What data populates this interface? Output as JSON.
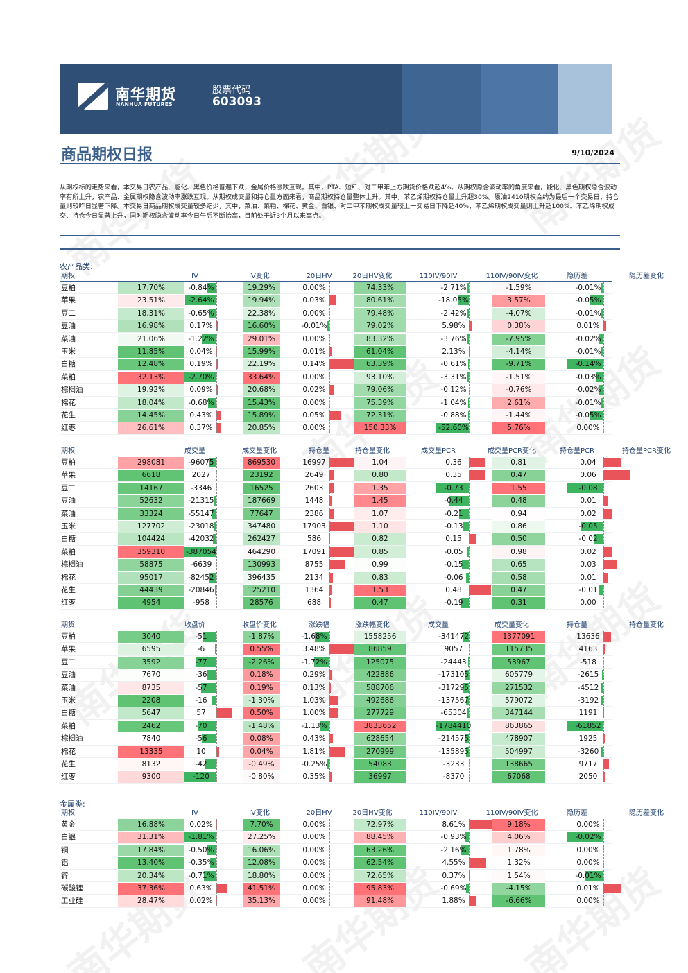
{
  "header": {
    "logo_cn": "南华期货",
    "logo_en": "NANHUA FUTURES",
    "stock_label": "股票代码",
    "stock_code": "603093",
    "title": "商品期权日报",
    "date": "9/10/2024"
  },
  "summary": "从期权标的走势来看，本交易日农产品、能化、黑色价格普遍下跌，金属价格涨跌互现。其中，PTA、短纤、对二甲苯上方期货价格跌超4%。从期权隐含波动率的角度来看，能化、黑色期权隐含波动率有所上升，农产品、金属期权隐含波动率涨跌互现。从期权成交量和持仓量方面来看，商品期权持仓量整体上升。其中，苯乙烯期权持仓量上升超30%。原油2410期权合约为最后一个交易日，持仓量则较昨日显著下降。本交易日商品期权成交量较多缩少，其中，菜油、菜粕、棉花、黄金、白银、对二甲苯期权成交量较上一交易日下降超40%，苯乙烯期权成交量则上升超100%。苯乙烯期权成交、持仓今日显著上升，同时期权隐含波动率今日午后不断抬高，目前处于近3个月以来高点。",
  "watermark": "南华期货",
  "sections": {
    "agri": "农产品类:",
    "metal": "金属类:"
  },
  "colors": {
    "green": "#3cb460",
    "red": "#e8545a",
    "green_bg_strong": "#6bbf7c",
    "red_bg_strong": "#ea6b70",
    "navy": "#2f4f76"
  },
  "tables": [
    {
      "id": "agri-iv",
      "headers": [
        "期权",
        "IV",
        "IV变化",
        "20日HV",
        "20日HV变化",
        "110IV/90IV",
        "110IV/90IV变化",
        "隐历差",
        "隐历差变化"
      ],
      "rows": [
        {
          "name": "豆粕",
          "v": [
            "17.70%",
            "-0.84%",
            "19.29%",
            "0.00%",
            "74.33%",
            "-2.71%",
            "-1.59%",
            "-0.01%"
          ]
        },
        {
          "name": "苹果",
          "v": [
            "23.51%",
            "-2.64%",
            "19.94%",
            "0.03%",
            "80.61%",
            "-18.05%",
            "3.57%",
            "-0.05%"
          ]
        },
        {
          "name": "豆二",
          "v": [
            "18.31%",
            "-0.65%",
            "22.38%",
            "0.00%",
            "79.48%",
            "-2.42%",
            "-4.07%",
            "-0.01%"
          ]
        },
        {
          "name": "豆油",
          "v": [
            "16.98%",
            "0.17%",
            "16.60%",
            "-0.01%",
            "79.02%",
            "5.98%",
            "0.38%",
            "0.01%"
          ]
        },
        {
          "name": "菜油",
          "v": [
            "21.06%",
            "-1.22%",
            "29.01%",
            "0.00%",
            "83.32%",
            "-3.76%",
            "-7.95%",
            "-0.02%"
          ]
        },
        {
          "name": "玉米",
          "v": [
            "11.85%",
            "0.04%",
            "15.99%",
            "0.01%",
            "61.04%",
            "2.13%",
            "-4.14%",
            "-0.01%"
          ]
        },
        {
          "name": "白糖",
          "v": [
            "12.48%",
            "0.19%",
            "22.19%",
            "0.14%",
            "63.39%",
            "-0.61%",
            "-9.71%",
            "-0.14%"
          ]
        },
        {
          "name": "菜粕",
          "v": [
            "32.13%",
            "-2.70%",
            "33.64%",
            "0.00%",
            "93.10%",
            "-3.31%",
            "-1.51%",
            "-0.03%"
          ]
        },
        {
          "name": "棕榈油",
          "v": [
            "19.92%",
            "0.09%",
            "20.68%",
            "0.02%",
            "79.06%",
            "-0.12%",
            "-0.76%",
            "-0.02%"
          ]
        },
        {
          "name": "棉花",
          "v": [
            "18.04%",
            "-0.68%",
            "15.43%",
            "0.00%",
            "75.39%",
            "-1.04%",
            "2.61%",
            "-0.01%"
          ]
        },
        {
          "name": "花生",
          "v": [
            "14.45%",
            "0.43%",
            "15.89%",
            "0.05%",
            "72.31%",
            "-0.88%",
            "-1.44%",
            "-0.05%"
          ]
        },
        {
          "name": "红枣",
          "v": [
            "26.61%",
            "0.37%",
            "20.85%",
            "0.00%",
            "150.33%",
            "-52.60%",
            "5.76%",
            "0.00%"
          ]
        }
      ]
    },
    {
      "id": "agri-vol",
      "headers": [
        "期权",
        "成交量",
        "成交量变化",
        "持仓量",
        "持仓量变化",
        "成交量PCR",
        "成交量PCR变化",
        "持仓量PCR",
        "持仓量PCR变化"
      ],
      "rows": [
        {
          "name": "豆粕",
          "v": [
            "298081",
            "-96075",
            "869530",
            "16997",
            "1.04",
            "0.36",
            "0.81",
            "0.04"
          ]
        },
        {
          "name": "苹果",
          "v": [
            "6618",
            "2027",
            "23192",
            "2649",
            "0.80",
            "0.35",
            "0.47",
            "0.06"
          ]
        },
        {
          "name": "豆二",
          "v": [
            "14167",
            "-3346",
            "16525",
            "2603",
            "1.35",
            "-0.73",
            "1.55",
            "-0.08"
          ]
        },
        {
          "name": "豆油",
          "v": [
            "52632",
            "-21315",
            "187669",
            "1448",
            "1.45",
            "-0.44",
            "0.48",
            "0.01"
          ]
        },
        {
          "name": "菜油",
          "v": [
            "33324",
            "-55147",
            "77647",
            "2386",
            "1.07",
            "-0.21",
            "0.94",
            "0.02"
          ]
        },
        {
          "name": "玉米",
          "v": [
            "127702",
            "-23018",
            "347480",
            "17903",
            "1.10",
            "-0.13",
            "0.86",
            "-0.05"
          ]
        },
        {
          "name": "白糖",
          "v": [
            "104424",
            "-42032",
            "262427",
            "586",
            "0.82",
            "0.15",
            "0.50",
            "-0.02"
          ]
        },
        {
          "name": "菜粕",
          "v": [
            "359310",
            "-387054",
            "464290",
            "17091",
            "0.85",
            "-0.05",
            "0.98",
            "0.02"
          ]
        },
        {
          "name": "棕榈油",
          "v": [
            "58875",
            "-6639",
            "130993",
            "8755",
            "0.99",
            "-0.15",
            "0.65",
            "0.03"
          ]
        },
        {
          "name": "棉花",
          "v": [
            "95017",
            "-82452",
            "396435",
            "2134",
            "0.83",
            "-0.06",
            "0.58",
            "0.01"
          ]
        },
        {
          "name": "花生",
          "v": [
            "44439",
            "-20846",
            "125210",
            "1364",
            "1.53",
            "0.48",
            "0.47",
            "-0.01"
          ]
        },
        {
          "name": "红枣",
          "v": [
            "4954",
            "-958",
            "28576",
            "688",
            "0.47",
            "-0.19",
            "0.31",
            "0.00"
          ]
        }
      ]
    },
    {
      "id": "agri-fut",
      "headers": [
        "期货",
        "收盘价",
        "收盘价变化",
        "涨跌幅",
        "涨跌幅变化",
        "成交量",
        "成交量变化",
        "持仓量",
        "持仓量变化"
      ],
      "rows": [
        {
          "name": "豆粕",
          "v": [
            "3040",
            "-51",
            "-1.87%",
            "-1.68%",
            "1558256",
            "-341472",
            "1377091",
            "13636"
          ]
        },
        {
          "name": "苹果",
          "v": [
            "6595",
            "-6",
            "0.55%",
            "3.48%",
            "86859",
            "9057",
            "115735",
            "4163"
          ]
        },
        {
          "name": "豆二",
          "v": [
            "3592",
            "-77",
            "-2.26%",
            "-1.72%",
            "125075",
            "-24443",
            "53967",
            "-518"
          ]
        },
        {
          "name": "豆油",
          "v": [
            "7670",
            "-36",
            "0.18%",
            "0.29%",
            "422886",
            "-173105",
            "605779",
            "-2615"
          ]
        },
        {
          "name": "菜油",
          "v": [
            "8735",
            "-57",
            "0.19%",
            "0.13%",
            "588706",
            "-317295",
            "271532",
            "-4512"
          ]
        },
        {
          "name": "玉米",
          "v": [
            "2208",
            "-16",
            "-1.30%",
            "1.03%",
            "492686",
            "-137567",
            "579072",
            "-3192"
          ]
        },
        {
          "name": "白糖",
          "v": [
            "5647",
            "57",
            "0.50%",
            "1.00%",
            "277729",
            "-65304",
            "347144",
            "1191"
          ]
        },
        {
          "name": "菜粕",
          "v": [
            "2462",
            "-70",
            "-1.48%",
            "-1.13%",
            "3833652",
            "-1784410",
            "863865",
            "-61852"
          ]
        },
        {
          "name": "棕榈油",
          "v": [
            "7840",
            "-56",
            "0.08%",
            "0.43%",
            "628654",
            "-214575",
            "478907",
            "1925"
          ]
        },
        {
          "name": "棉花",
          "v": [
            "13335",
            "10",
            "0.04%",
            "1.81%",
            "270999",
            "-135895",
            "504997",
            "-3260"
          ]
        },
        {
          "name": "花生",
          "v": [
            "8132",
            "-42",
            "-0.49%",
            "-0.25%",
            "54083",
            "-3233",
            "138665",
            "9717"
          ]
        },
        {
          "name": "红枣",
          "v": [
            "9300",
            "-120",
            "-0.80%",
            "0.35%",
            "36997",
            "-8370",
            "67068",
            "2050"
          ]
        }
      ]
    },
    {
      "id": "metal-iv",
      "headers": [
        "期权",
        "IV",
        "IV变化",
        "20日HV",
        "20日HV变化",
        "110IV/90IV",
        "110IV/90IV变化",
        "隐历差",
        "隐历差变化"
      ],
      "rows": [
        {
          "name": "黄金",
          "v": [
            "16.88%",
            "0.02%",
            "7.70%",
            "0.00%",
            "72.97%",
            "8.61%",
            "9.18%",
            "0.00%"
          ]
        },
        {
          "name": "白银",
          "v": [
            "31.31%",
            "-1.81%",
            "27.25%",
            "0.00%",
            "88.45%",
            "-0.93%",
            "4.06%",
            "-0.02%"
          ]
        },
        {
          "name": "铜",
          "v": [
            "17.84%",
            "-0.50%",
            "16.06%",
            "0.00%",
            "63.26%",
            "-2.16%",
            "1.78%",
            "0.00%"
          ]
        },
        {
          "name": "铝",
          "v": [
            "13.40%",
            "-0.35%",
            "12.08%",
            "0.00%",
            "62.54%",
            "4.55%",
            "1.32%",
            "0.00%"
          ]
        },
        {
          "name": "锌",
          "v": [
            "20.34%",
            "-0.71%",
            "18.80%",
            "0.00%",
            "72.65%",
            "0.37%",
            "1.54%",
            "-0.01%"
          ]
        },
        {
          "name": "碳酸锂",
          "v": [
            "37.36%",
            "0.63%",
            "41.51%",
            "0.00%",
            "95.83%",
            "-0.69%",
            "-4.15%",
            "0.01%"
          ]
        },
        {
          "name": "工业硅",
          "v": [
            "28.47%",
            "0.02%",
            "35.13%",
            "0.00%",
            "91.48%",
            "1.88%",
            "-6.66%",
            "0.00%"
          ]
        }
      ]
    }
  ]
}
